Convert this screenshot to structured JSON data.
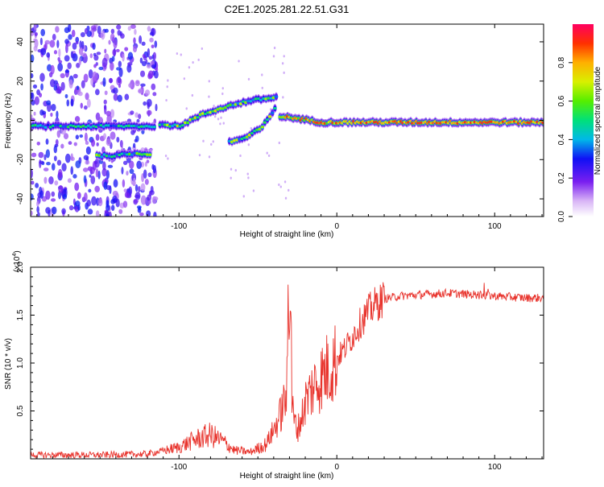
{
  "title": "C2E1.2025.281.22.51.G31",
  "chart_data": [
    {
      "type": "heatmap",
      "xlabel": "Height of straight line (km)",
      "ylabel": "Frequency (Hz)",
      "xlim": [
        -194,
        131
      ],
      "ylim": [
        -49,
        49
      ],
      "xticks": [
        -100,
        0,
        100
      ],
      "yticks": [
        -40,
        -20,
        0,
        20,
        40
      ],
      "colorbar": {
        "label": "Normalized spectral amplitude",
        "range": [
          0,
          1
        ],
        "ticks": [
          "0.0",
          "0.2",
          "0.4",
          "0.6",
          "0.8"
        ]
      },
      "traces": [
        {
          "name": "scatter-band",
          "points": [
            [
              -194,
              -3
            ],
            [
              -180,
              -3
            ],
            [
              -160,
              -3
            ],
            [
              -140,
              -3
            ],
            [
              -125,
              -3
            ],
            [
              -115,
              -3
            ]
          ]
        },
        {
          "name": "lower-branch",
          "points": [
            [
              -152,
              -18
            ],
            [
              -140,
              -18
            ],
            [
              -130,
              -17
            ],
            [
              -118,
              -17
            ]
          ]
        },
        {
          "name": "rising-branch",
          "points": [
            [
              -112,
              -2
            ],
            [
              -100,
              -3
            ],
            [
              -85,
              3
            ],
            [
              -70,
              7
            ],
            [
              -55,
              10
            ],
            [
              -45,
              11
            ],
            [
              -38,
              12
            ]
          ]
        },
        {
          "name": "descending-branch",
          "points": [
            [
              -68,
              -11
            ],
            [
              -58,
              -9
            ],
            [
              -48,
              -4
            ],
            [
              -42,
              2
            ],
            [
              -38,
              8
            ]
          ]
        },
        {
          "name": "tail",
          "points": [
            [
              -36,
              2
            ],
            [
              -25,
              1
            ],
            [
              -10,
              -1
            ],
            [
              0,
              -1
            ],
            [
              50,
              -1
            ],
            [
              100,
              -1
            ],
            [
              131,
              -1
            ]
          ]
        }
      ]
    },
    {
      "type": "line",
      "xlabel": "Height of straight line (km)",
      "ylabel": "SNR (10 * v/v)",
      "multiplier": "(x10",
      "multiplier_exp": "4",
      "xlim": [
        -194,
        131
      ],
      "ylim": [
        0,
        20000
      ],
      "xticks": [
        -100,
        0,
        100
      ],
      "yticks": [
        5000,
        10000,
        15000,
        20000
      ],
      "ytick_labels": [
        "0.5",
        "1.0",
        "1.5",
        "2.0"
      ],
      "color": "#e8322b",
      "series": [
        {
          "name": "SNR",
          "envelope": [
            [
              -194,
              400
            ],
            [
              -150,
              400
            ],
            [
              -120,
              500
            ],
            [
              -100,
              1200
            ],
            [
              -90,
              2000
            ],
            [
              -80,
              2500
            ],
            [
              -72,
              1800
            ],
            [
              -65,
              900
            ],
            [
              -55,
              700
            ],
            [
              -45,
              1500
            ],
            [
              -40,
              3000
            ],
            [
              -36,
              4500
            ],
            [
              -33,
              6000
            ],
            [
              -31,
              8000
            ],
            [
              -30,
              14000
            ],
            [
              -29,
              6000
            ],
            [
              -27,
              4000
            ],
            [
              -25,
              3000
            ],
            [
              -22,
              4500
            ],
            [
              -20,
              6000
            ],
            [
              -15,
              7500
            ],
            [
              -10,
              8500
            ],
            [
              -5,
              9500
            ],
            [
              0,
              10500
            ],
            [
              5,
              11500
            ],
            [
              10,
              12800
            ],
            [
              15,
              14200
            ],
            [
              20,
              15400
            ],
            [
              25,
              16200
            ],
            [
              30,
              16700
            ],
            [
              40,
              17000
            ],
            [
              50,
              17100
            ],
            [
              60,
              17200
            ],
            [
              70,
              17300
            ],
            [
              80,
              17200
            ],
            [
              90,
              17100
            ],
            [
              100,
              17000
            ],
            [
              110,
              16900
            ],
            [
              120,
              16800
            ],
            [
              131,
              16800
            ]
          ]
        }
      ]
    }
  ]
}
